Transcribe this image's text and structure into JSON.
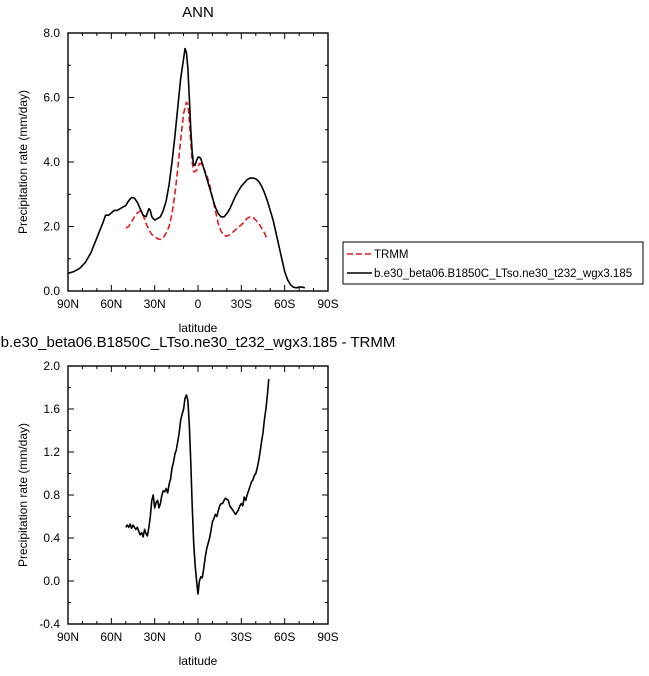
{
  "chart_data": [
    {
      "type": "line",
      "title": "ANN",
      "xlabel": "latitude",
      "ylabel": "Precipitation rate (mm/day)",
      "xlim": [
        90,
        -90
      ],
      "ylim": [
        0,
        8
      ],
      "x_ticks": [
        90,
        60,
        30,
        0,
        -30,
        -60,
        -90
      ],
      "x_tick_labels": [
        "90N",
        "60N",
        "30N",
        "0",
        "30S",
        "60S",
        "90S"
      ],
      "y_ticks": [
        0,
        2,
        4,
        6,
        8
      ],
      "y_tick_labels": [
        "0.0",
        "2.0",
        "4.0",
        "6.0",
        "8.0"
      ],
      "legend_position": "right",
      "series": [
        {
          "name": "TRMM",
          "color": "#e8181c",
          "dash": "dashed",
          "points": [
            [
              50,
              1.95
            ],
            [
              48,
              2.0
            ],
            [
              46,
              2.15
            ],
            [
              44,
              2.3
            ],
            [
              42,
              2.42
            ],
            [
              40,
              2.48
            ],
            [
              38,
              2.35
            ],
            [
              36,
              2.1
            ],
            [
              34,
              1.9
            ],
            [
              32,
              1.75
            ],
            [
              30,
              1.7
            ],
            [
              28,
              1.62
            ],
            [
              26,
              1.6
            ],
            [
              24,
              1.65
            ],
            [
              22,
              1.8
            ],
            [
              20,
              2.0
            ],
            [
              18,
              2.4
            ],
            [
              16,
              3.0
            ],
            [
              14,
              3.8
            ],
            [
              12,
              4.7
            ],
            [
              10,
              5.5
            ],
            [
              8,
              5.85
            ],
            [
              7,
              5.8
            ],
            [
              6,
              5.3
            ],
            [
              5,
              4.6
            ],
            [
              4,
              4.0
            ],
            [
              3,
              3.7
            ],
            [
              2,
              3.7
            ],
            [
              1,
              3.75
            ],
            [
              0,
              3.85
            ],
            [
              -1,
              3.95
            ],
            [
              -2,
              3.95
            ],
            [
              -4,
              3.8
            ],
            [
              -6,
              3.6
            ],
            [
              -8,
              3.3
            ],
            [
              -10,
              2.9
            ],
            [
              -12,
              2.5
            ],
            [
              -14,
              2.1
            ],
            [
              -16,
              1.85
            ],
            [
              -18,
              1.72
            ],
            [
              -20,
              1.7
            ],
            [
              -22,
              1.75
            ],
            [
              -24,
              1.82
            ],
            [
              -26,
              1.9
            ],
            [
              -28,
              1.98
            ],
            [
              -30,
              2.05
            ],
            [
              -32,
              2.15
            ],
            [
              -34,
              2.25
            ],
            [
              -36,
              2.3
            ],
            [
              -38,
              2.28
            ],
            [
              -40,
              2.2
            ],
            [
              -42,
              2.1
            ],
            [
              -44,
              1.95
            ],
            [
              -46,
              1.8
            ],
            [
              -48,
              1.6
            ]
          ]
        },
        {
          "name": "b.e30_beta06.B1850C_LTso.ne30_t232_wgx3.185",
          "color": "#000000",
          "dash": "solid",
          "points": [
            [
              90,
              0.55
            ],
            [
              86,
              0.6
            ],
            [
              82,
              0.7
            ],
            [
              78,
              0.88
            ],
            [
              74,
              1.2
            ],
            [
              70,
              1.65
            ],
            [
              66,
              2.1
            ],
            [
              64,
              2.35
            ],
            [
              62,
              2.35
            ],
            [
              60,
              2.42
            ],
            [
              58,
              2.5
            ],
            [
              56,
              2.5
            ],
            [
              54,
              2.55
            ],
            [
              52,
              2.6
            ],
            [
              50,
              2.65
            ],
            [
              48,
              2.8
            ],
            [
              46,
              2.9
            ],
            [
              44,
              2.88
            ],
            [
              42,
              2.75
            ],
            [
              40,
              2.55
            ],
            [
              38,
              2.35
            ],
            [
              36,
              2.3
            ],
            [
              34,
              2.55
            ],
            [
              33,
              2.5
            ],
            [
              32,
              2.3
            ],
            [
              30,
              2.2
            ],
            [
              28,
              2.25
            ],
            [
              26,
              2.3
            ],
            [
              24,
              2.5
            ],
            [
              22,
              2.8
            ],
            [
              20,
              3.3
            ],
            [
              18,
              4.0
            ],
            [
              16,
              4.8
            ],
            [
              14,
              5.7
            ],
            [
              12,
              6.6
            ],
            [
              10,
              7.2
            ],
            [
              9,
              7.52
            ],
            [
              8,
              7.4
            ],
            [
              7,
              6.9
            ],
            [
              6,
              6.0
            ],
            [
              5,
              5.0
            ],
            [
              4,
              4.3
            ],
            [
              3,
              3.9
            ],
            [
              2,
              3.9
            ],
            [
              1,
              4.05
            ],
            [
              0,
              4.15
            ],
            [
              -1,
              4.15
            ],
            [
              -2,
              4.1
            ],
            [
              -4,
              3.8
            ],
            [
              -6,
              3.5
            ],
            [
              -8,
              3.2
            ],
            [
              -10,
              2.9
            ],
            [
              -12,
              2.6
            ],
            [
              -14,
              2.4
            ],
            [
              -16,
              2.3
            ],
            [
              -18,
              2.3
            ],
            [
              -20,
              2.4
            ],
            [
              -22,
              2.55
            ],
            [
              -24,
              2.75
            ],
            [
              -26,
              2.95
            ],
            [
              -28,
              3.1
            ],
            [
              -30,
              3.25
            ],
            [
              -32,
              3.35
            ],
            [
              -34,
              3.45
            ],
            [
              -36,
              3.5
            ],
            [
              -38,
              3.5
            ],
            [
              -40,
              3.48
            ],
            [
              -42,
              3.4
            ],
            [
              -44,
              3.25
            ],
            [
              -46,
              3.05
            ],
            [
              -48,
              2.8
            ],
            [
              -50,
              2.5
            ],
            [
              -52,
              2.2
            ],
            [
              -54,
              1.8
            ],
            [
              -56,
              1.4
            ],
            [
              -58,
              1.0
            ],
            [
              -60,
              0.6
            ],
            [
              -62,
              0.35
            ],
            [
              -64,
              0.2
            ],
            [
              -66,
              0.12
            ],
            [
              -68,
              0.1
            ],
            [
              -70,
              0.12
            ],
            [
              -72,
              0.12
            ],
            [
              -74,
              0.1
            ]
          ]
        }
      ]
    },
    {
      "type": "line",
      "title": "b.e30_beta06.B1850C_LTso.ne30_t232_wgx3.185 - TRMM",
      "xlabel": "latitude",
      "ylabel": "Precipitation rate (mm/day)",
      "xlim": [
        90,
        -90
      ],
      "ylim": [
        -0.4,
        2.0
      ],
      "x_ticks": [
        90,
        60,
        30,
        0,
        -30,
        -60,
        -90
      ],
      "x_tick_labels": [
        "90N",
        "60N",
        "30N",
        "0",
        "30S",
        "60S",
        "90S"
      ],
      "y_ticks": [
        -0.4,
        0,
        0.4,
        0.8,
        1.2,
        1.6,
        2.0
      ],
      "y_tick_labels": [
        "-0.4",
        "0.0",
        "0.4",
        "0.8",
        "1.2",
        "1.6",
        "2.0"
      ],
      "series": [
        {
          "color": "#000000",
          "dash": "solid",
          "points": [
            [
              50,
              0.5
            ],
            [
              49,
              0.52
            ],
            [
              48,
              0.5
            ],
            [
              47,
              0.53
            ],
            [
              46,
              0.49
            ],
            [
              45,
              0.52
            ],
            [
              44,
              0.5
            ],
            [
              43,
              0.48
            ],
            [
              42,
              0.5
            ],
            [
              41,
              0.46
            ],
            [
              40,
              0.43
            ],
            [
              39,
              0.45
            ],
            [
              38,
              0.41
            ],
            [
              37,
              0.48
            ],
            [
              36,
              0.44
            ],
            [
              35,
              0.42
            ],
            [
              34,
              0.5
            ],
            [
              33,
              0.6
            ],
            [
              32,
              0.75
            ],
            [
              31,
              0.8
            ],
            [
              30,
              0.68
            ],
            [
              29,
              0.73
            ],
            [
              28,
              0.75
            ],
            [
              27,
              0.68
            ],
            [
              26,
              0.72
            ],
            [
              25,
              0.8
            ],
            [
              24,
              0.84
            ],
            [
              23,
              0.83
            ],
            [
              22,
              0.86
            ],
            [
              21,
              0.82
            ],
            [
              20,
              0.9
            ],
            [
              19,
              0.95
            ],
            [
              18,
              1.05
            ],
            [
              17,
              1.1
            ],
            [
              16,
              1.18
            ],
            [
              15,
              1.22
            ],
            [
              14,
              1.3
            ],
            [
              13,
              1.38
            ],
            [
              12,
              1.5
            ],
            [
              11,
              1.55
            ],
            [
              10,
              1.6
            ],
            [
              9,
              1.7
            ],
            [
              8,
              1.73
            ],
            [
              7,
              1.68
            ],
            [
              6,
              1.45
            ],
            [
              5,
              1.1
            ],
            [
              4,
              0.7
            ],
            [
              3,
              0.35
            ],
            [
              2,
              0.15
            ],
            [
              1,
              0.0
            ],
            [
              0,
              -0.12
            ],
            [
              -1,
              0.0
            ],
            [
              -2,
              0.04
            ],
            [
              -3,
              0.03
            ],
            [
              -4,
              0.12
            ],
            [
              -5,
              0.22
            ],
            [
              -6,
              0.3
            ],
            [
              -7,
              0.35
            ],
            [
              -8,
              0.4
            ],
            [
              -9,
              0.47
            ],
            [
              -10,
              0.55
            ],
            [
              -11,
              0.58
            ],
            [
              -12,
              0.62
            ],
            [
              -13,
              0.6
            ],
            [
              -14,
              0.65
            ],
            [
              -15,
              0.7
            ],
            [
              -16,
              0.72
            ],
            [
              -17,
              0.72
            ],
            [
              -18,
              0.75
            ],
            [
              -19,
              0.77
            ],
            [
              -20,
              0.76
            ],
            [
              -21,
              0.75
            ],
            [
              -22,
              0.7
            ],
            [
              -23,
              0.68
            ],
            [
              -24,
              0.66
            ],
            [
              -25,
              0.64
            ],
            [
              -26,
              0.62
            ],
            [
              -27,
              0.64
            ],
            [
              -28,
              0.66
            ],
            [
              -29,
              0.7
            ],
            [
              -30,
              0.72
            ],
            [
              -31,
              0.7
            ],
            [
              -32,
              0.78
            ],
            [
              -33,
              0.75
            ],
            [
              -34,
              0.8
            ],
            [
              -35,
              0.84
            ],
            [
              -36,
              0.88
            ],
            [
              -37,
              0.92
            ],
            [
              -38,
              0.94
            ],
            [
              -39,
              0.98
            ],
            [
              -40,
              1.0
            ],
            [
              -41,
              1.05
            ],
            [
              -42,
              1.12
            ],
            [
              -43,
              1.2
            ],
            [
              -44,
              1.3
            ],
            [
              -45,
              1.38
            ],
            [
              -46,
              1.5
            ],
            [
              -47,
              1.6
            ],
            [
              -48,
              1.72
            ],
            [
              -49,
              1.88
            ]
          ]
        }
      ]
    }
  ]
}
